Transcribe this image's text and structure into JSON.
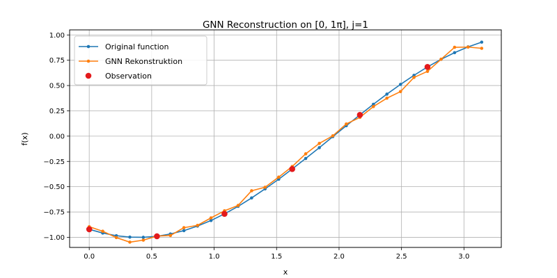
{
  "chart_data": {
    "type": "line",
    "title": "GNN Reconstruction on [0, 1π], j=1",
    "xlabel": "x",
    "ylabel": "f(x)",
    "xlim": [
      -0.157,
      3.299
    ],
    "ylim": [
      -1.1,
      1.05
    ],
    "xticks": [
      0.0,
      0.5,
      1.0,
      1.5,
      2.0,
      2.5,
      3.0
    ],
    "xtick_labels": [
      "0.0",
      "0.5",
      "1.0",
      "1.5",
      "2.0",
      "2.5",
      "3.0"
    ],
    "yticks": [
      -1.0,
      -0.75,
      -0.5,
      -0.25,
      0.0,
      0.25,
      0.5,
      0.75,
      1.0
    ],
    "ytick_labels": [
      "−1.00",
      "−0.75",
      "−0.50",
      "−0.25",
      "0.00",
      "0.25",
      "0.50",
      "0.75",
      "1.00"
    ],
    "grid": true,
    "legend_position": "top-left",
    "series": [
      {
        "name": "Original function",
        "kind": "line",
        "color": "#1f77b4",
        "x": [
          0.0,
          0.108,
          0.217,
          0.325,
          0.433,
          0.542,
          0.65,
          0.758,
          0.867,
          0.975,
          1.083,
          1.192,
          1.3,
          1.408,
          1.517,
          1.625,
          1.733,
          1.842,
          1.95,
          2.058,
          2.167,
          2.275,
          2.383,
          2.492,
          2.6,
          2.708,
          2.817,
          2.925,
          3.033,
          3.142
        ],
        "y": [
          -0.921,
          -0.958,
          -0.984,
          -0.998,
          -1.0,
          -0.99,
          -0.967,
          -0.934,
          -0.889,
          -0.834,
          -0.768,
          -0.694,
          -0.611,
          -0.521,
          -0.426,
          -0.325,
          -0.221,
          -0.114,
          -0.005,
          0.103,
          0.21,
          0.315,
          0.415,
          0.511,
          0.601,
          0.684,
          0.759,
          0.825,
          0.882,
          0.929
        ]
      },
      {
        "name": "GNN Rekonstruktion",
        "kind": "line",
        "color": "#ff7f0e",
        "x": [
          0.0,
          0.108,
          0.217,
          0.325,
          0.433,
          0.542,
          0.65,
          0.758,
          0.867,
          0.975,
          1.083,
          1.192,
          1.3,
          1.408,
          1.517,
          1.625,
          1.733,
          1.842,
          1.95,
          2.058,
          2.167,
          2.275,
          2.383,
          2.492,
          2.6,
          2.708,
          2.817,
          2.925,
          3.033,
          3.142
        ],
        "y": [
          -0.895,
          -0.94,
          -1.003,
          -1.048,
          -1.028,
          -0.988,
          -0.982,
          -0.905,
          -0.882,
          -0.808,
          -0.738,
          -0.685,
          -0.54,
          -0.505,
          -0.405,
          -0.3,
          -0.175,
          -0.072,
          0.003,
          0.12,
          0.185,
          0.292,
          0.375,
          0.44,
          0.58,
          0.64,
          0.76,
          0.878,
          0.88,
          0.868
        ]
      },
      {
        "name": "Observation",
        "kind": "scatter",
        "color": "#e31a1c",
        "x": [
          0.0,
          0.542,
          1.083,
          1.625,
          2.167,
          2.708
        ],
        "y": [
          -0.921,
          -0.99,
          -0.768,
          -0.325,
          0.21,
          0.684
        ]
      }
    ]
  }
}
